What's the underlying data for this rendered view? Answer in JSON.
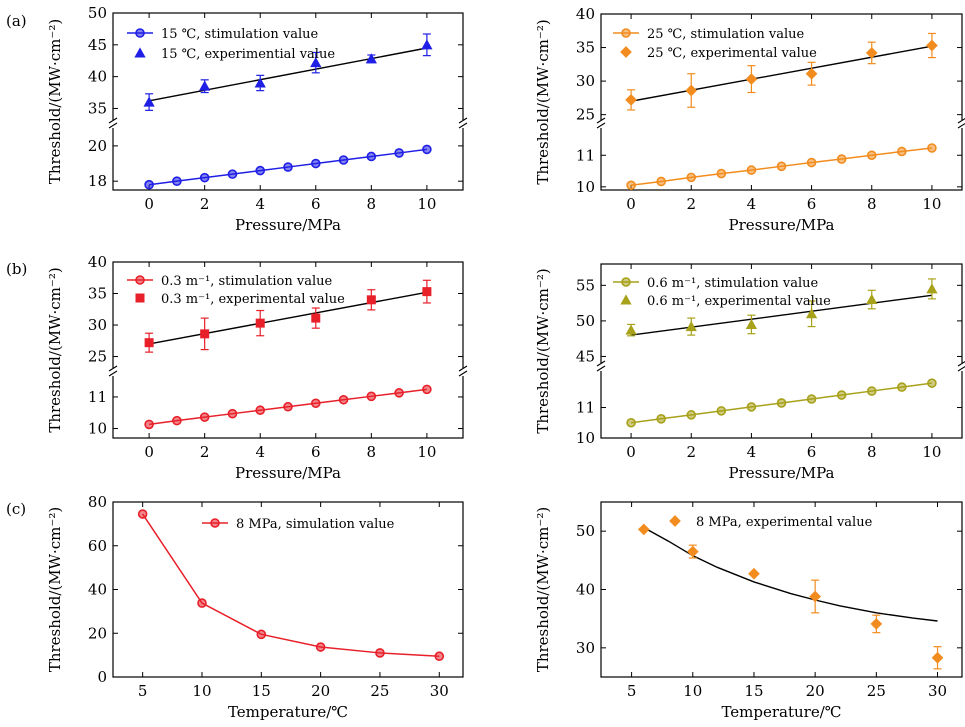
{
  "panel_labels": [
    "(a)",
    "(b)",
    "(c)"
  ],
  "chart_data": [
    {
      "type": "scatter",
      "id": "a-left",
      "xlabel": "Pressure/MPa",
      "ylabel": "Threshold/(MW·cm⁻²)",
      "xlim": [
        -1.3,
        11.3
      ],
      "xticks": [
        0,
        2,
        4,
        6,
        8,
        10
      ],
      "broken_y_axis": true,
      "ylim_upper": [
        33.5,
        50
      ],
      "yticks_upper": [
        35,
        40,
        45,
        50
      ],
      "ylim_lower": [
        17.5,
        20.9
      ],
      "yticks_lower": [
        18,
        20
      ],
      "legend_position": "top-left",
      "series": [
        {
          "name": "15 ℃, stimulation value",
          "marker": "circle",
          "color": "#1f1fe6",
          "segment": "lower",
          "connect": true,
          "x": [
            0,
            1,
            2,
            3,
            4,
            5,
            6,
            7,
            8,
            9,
            10
          ],
          "y": [
            17.8,
            18.0,
            18.2,
            18.4,
            18.6,
            18.8,
            19.0,
            19.2,
            19.4,
            19.6,
            19.8
          ]
        },
        {
          "name": "15 ℃, experimential value",
          "marker": "triangle",
          "color": "#1f1fe6",
          "segment": "upper",
          "connect": false,
          "x": [
            0,
            2,
            4,
            6,
            8,
            10
          ],
          "y": [
            36.0,
            38.5,
            39.0,
            42.2,
            42.8,
            45.0
          ],
          "err": [
            1.3,
            1.0,
            1.2,
            1.6,
            0.6,
            1.7
          ]
        }
      ],
      "fit_lines": [
        {
          "segment": "upper",
          "color": "#000000",
          "x": [
            0,
            10
          ],
          "y": [
            36.2,
            44.5
          ]
        }
      ]
    },
    {
      "type": "scatter",
      "id": "a-right",
      "xlabel": "Pressure/MPa",
      "ylabel": "Threshold/(MW·cm⁻²)",
      "xlim": [
        -1.0,
        11.0
      ],
      "xticks": [
        0,
        2,
        4,
        6,
        8,
        10
      ],
      "broken_y_axis": true,
      "ylim_upper": [
        24.5,
        40
      ],
      "yticks_upper": [
        25,
        30,
        35,
        40
      ],
      "ylim_lower": [
        9.9,
        11.8
      ],
      "yticks_lower": [
        10,
        11
      ],
      "legend_position": "top-left",
      "series": [
        {
          "name": "25 ℃, stimulation value",
          "marker": "circle",
          "color": "#f28c1e",
          "segment": "lower",
          "connect": true,
          "x": [
            0,
            1,
            2,
            3,
            4,
            5,
            6,
            7,
            8,
            9,
            10
          ],
          "y": [
            10.05,
            10.17,
            10.3,
            10.42,
            10.53,
            10.65,
            10.77,
            10.88,
            11.0,
            11.12,
            11.23
          ]
        },
        {
          "name": "25 ℃, experimental value",
          "marker": "diamond",
          "color": "#f28c1e",
          "segment": "upper",
          "connect": false,
          "x": [
            0,
            2,
            4,
            6,
            8,
            10
          ],
          "y": [
            27.2,
            28.6,
            30.3,
            31.1,
            34.2,
            35.3
          ],
          "err": [
            1.5,
            2.5,
            2.0,
            1.7,
            1.6,
            1.8
          ]
        }
      ],
      "fit_lines": [
        {
          "segment": "upper",
          "color": "#000000",
          "x": [
            0,
            10
          ],
          "y": [
            27.0,
            35.2
          ]
        }
      ]
    },
    {
      "type": "scatter",
      "id": "b-left",
      "xlabel": "Pressure/MPa",
      "ylabel": "Threshold/(MW·cm⁻²)",
      "xlim": [
        -1.3,
        11.3
      ],
      "xticks": [
        0,
        2,
        4,
        6,
        8,
        10
      ],
      "broken_y_axis": true,
      "ylim_upper": [
        23.5,
        40
      ],
      "yticks_upper": [
        25,
        30,
        35,
        40
      ],
      "ylim_lower": [
        9.7,
        11.6
      ],
      "yticks_lower": [
        10,
        11
      ],
      "legend_position": "top-left",
      "series": [
        {
          "name": "0.3 m⁻¹, stimulation value",
          "marker": "circle",
          "color": "#e8202a",
          "segment": "lower",
          "connect": true,
          "x": [
            0,
            1,
            2,
            3,
            4,
            5,
            6,
            7,
            8,
            9,
            10
          ],
          "y": [
            10.13,
            10.25,
            10.36,
            10.47,
            10.58,
            10.69,
            10.8,
            10.91,
            11.02,
            11.13,
            11.24
          ]
        },
        {
          "name": "0.3 m⁻¹, experimental value",
          "marker": "square",
          "color": "#e8202a",
          "segment": "upper",
          "connect": false,
          "x": [
            0,
            2,
            4,
            6,
            8,
            10
          ],
          "y": [
            27.2,
            28.6,
            30.3,
            31.1,
            34.0,
            35.3
          ],
          "err": [
            1.5,
            2.5,
            2.0,
            1.6,
            1.6,
            1.8
          ]
        }
      ],
      "fit_lines": [
        {
          "segment": "upper",
          "color": "#000000",
          "x": [
            0,
            10
          ],
          "y": [
            27.0,
            35.2
          ]
        }
      ]
    },
    {
      "type": "scatter",
      "id": "b-right",
      "xlabel": "Pressure/MPa",
      "ylabel": "Threshold/(MW·cm⁻²)",
      "xlim": [
        -1.0,
        11.0
      ],
      "xticks": [
        0,
        2,
        4,
        6,
        8,
        10
      ],
      "broken_y_axis": true,
      "ylim_upper": [
        44.5,
        58
      ],
      "yticks_upper": [
        45,
        50,
        55
      ],
      "ylim_lower": [
        10,
        12.1
      ],
      "yticks_lower": [
        10,
        11
      ],
      "legend_position": "top-left",
      "series": [
        {
          "name": "0.6 m⁻¹, stimulation value",
          "marker": "circle",
          "color": "#a8a11a",
          "segment": "lower",
          "connect": true,
          "x": [
            0,
            1,
            2,
            3,
            4,
            5,
            6,
            7,
            8,
            9,
            10
          ],
          "y": [
            10.5,
            10.63,
            10.76,
            10.89,
            11.02,
            11.15,
            11.28,
            11.41,
            11.54,
            11.67,
            11.8
          ]
        },
        {
          "name": "0.6 m⁻¹, experimental value",
          "marker": "triangle",
          "color": "#a8a11a",
          "segment": "upper",
          "connect": false,
          "x": [
            0,
            2,
            4,
            6,
            8,
            10
          ],
          "y": [
            48.7,
            49.2,
            49.5,
            51.0,
            53.0,
            54.5
          ],
          "err": [
            0.8,
            1.2,
            1.3,
            1.8,
            1.3,
            1.4
          ]
        }
      ],
      "fit_lines": [
        {
          "segment": "upper",
          "color": "#000000",
          "x": [
            0,
            10
          ],
          "y": [
            48.0,
            53.6
          ]
        }
      ]
    },
    {
      "type": "line",
      "id": "c-left",
      "xlabel": "Temperature/℃",
      "ylabel": "Threshold/(MW·cm⁻²)",
      "xlim": [
        2.5,
        32.0
      ],
      "xticks": [
        5,
        10,
        15,
        20,
        25,
        30
      ],
      "ylim": [
        0,
        80
      ],
      "yticks": [
        0,
        20,
        40,
        60,
        80
      ],
      "legend_position": "top-right",
      "series": [
        {
          "name": "8 MPa, simulation value",
          "marker": "circle",
          "color": "#e8202a",
          "connect": true,
          "x": [
            5,
            10,
            15,
            20,
            25,
            30
          ],
          "y": [
            74.5,
            33.8,
            19.5,
            13.7,
            11.0,
            9.5
          ]
        }
      ]
    },
    {
      "type": "scatter",
      "id": "c-right",
      "xlabel": "Temperature/℃",
      "ylabel": "Threshold/(MW·cm⁻²)",
      "xlim": [
        2.5,
        32.0
      ],
      "xticks": [
        5,
        10,
        15,
        20,
        25,
        30
      ],
      "ylim": [
        25,
        55
      ],
      "yticks": [
        30,
        40,
        50
      ],
      "legend_position": "top-right",
      "series": [
        {
          "name": "8 MPa, experimental value",
          "marker": "diamond",
          "color": "#f28c1e",
          "connect": false,
          "x": [
            6,
            10,
            15,
            20,
            25,
            30
          ],
          "y": [
            50.3,
            46.5,
            42.7,
            38.8,
            34.1,
            28.3
          ],
          "err": [
            0.0,
            1.1,
            0.0,
            2.8,
            1.5,
            1.9
          ]
        }
      ],
      "fit_curve": {
        "color": "#000000",
        "x_start": 6,
        "x_end": 30,
        "x": [
          6,
          8,
          10,
          12,
          15,
          18,
          20,
          22,
          25,
          28,
          30
        ],
        "y": [
          50.6,
          48.3,
          45.8,
          43.8,
          41.3,
          39.3,
          38.2,
          37.2,
          36.0,
          35.1,
          34.6
        ]
      }
    }
  ]
}
